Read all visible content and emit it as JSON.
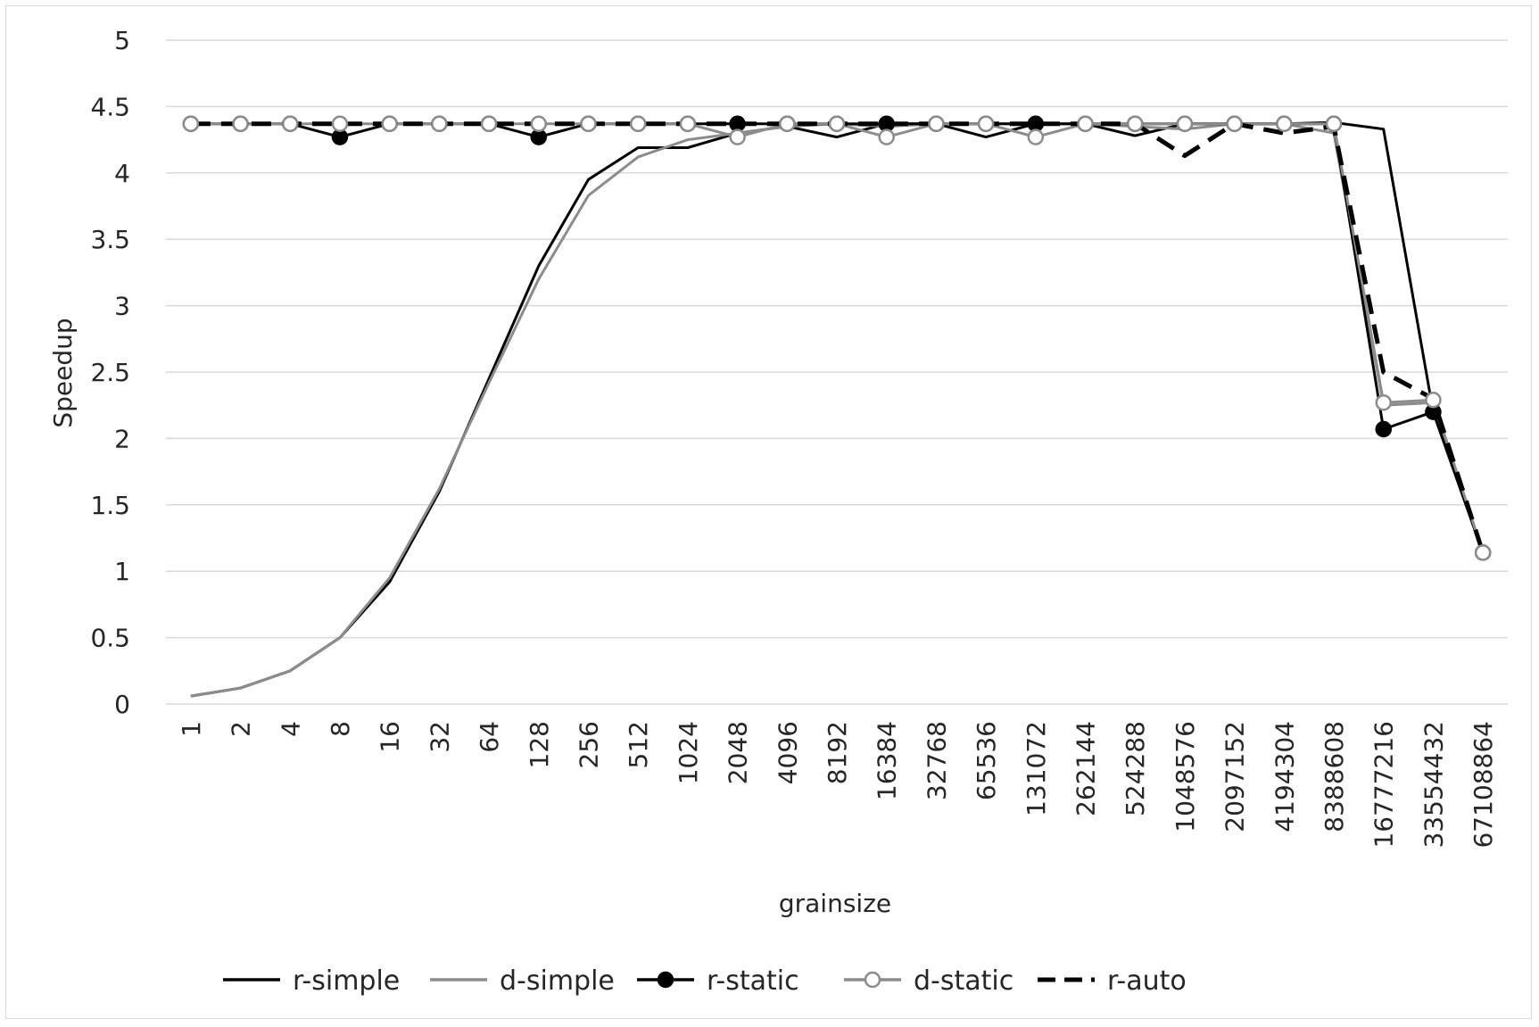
{
  "chart_data": {
    "type": "line",
    "xlabel": "grainsize",
    "ylabel": "Speedup",
    "ylim": [
      0,
      5
    ],
    "y_ticks": [
      "0",
      "0.5",
      "1",
      "1.5",
      "2",
      "2.5",
      "3",
      "3.5",
      "4",
      "4.5",
      "5"
    ],
    "grid": "horizontal",
    "legend_position": "bottom",
    "categories": [
      "1",
      "2",
      "4",
      "8",
      "16",
      "32",
      "64",
      "128",
      "256",
      "512",
      "1024",
      "2048",
      "4096",
      "8192",
      "16384",
      "32768",
      "65536",
      "131072",
      "262144",
      "524288",
      "1048576",
      "2097152",
      "4194304",
      "8388608",
      "16777216",
      "33554432",
      "67108864"
    ],
    "series": [
      {
        "name": "r-simple",
        "color": "#000000",
        "style": "solid",
        "marker": "none",
        "values": [
          0.06,
          0.12,
          0.25,
          0.5,
          0.92,
          1.6,
          2.45,
          3.3,
          3.95,
          4.19,
          4.19,
          4.3,
          4.35,
          4.27,
          4.37,
          4.37,
          4.27,
          4.37,
          4.37,
          4.28,
          4.37,
          4.37,
          4.37,
          4.38,
          4.33,
          2.2,
          1.14
        ]
      },
      {
        "name": "d-simple",
        "color": "#8c8c8c",
        "style": "solid",
        "marker": "none",
        "values": [
          0.06,
          0.12,
          0.25,
          0.5,
          0.95,
          1.62,
          2.42,
          3.2,
          3.83,
          4.12,
          4.25,
          4.3,
          4.35,
          4.37,
          4.35,
          4.37,
          4.37,
          4.37,
          4.37,
          4.35,
          4.33,
          4.37,
          4.37,
          4.3,
          2.25,
          2.27,
          1.14
        ]
      },
      {
        "name": "r-static",
        "color": "#000000",
        "style": "solid",
        "marker": "filled",
        "values": [
          4.37,
          4.37,
          4.37,
          4.27,
          4.37,
          4.37,
          4.37,
          4.27,
          4.37,
          4.37,
          4.37,
          4.37,
          4.37,
          4.37,
          4.37,
          4.37,
          4.37,
          4.37,
          4.37,
          4.37,
          4.37,
          4.37,
          4.37,
          4.37,
          2.07,
          2.2,
          1.14
        ]
      },
      {
        "name": "d-static",
        "color": "#8c8c8c",
        "style": "solid",
        "marker": "open",
        "values": [
          4.37,
          4.37,
          4.37,
          4.37,
          4.37,
          4.37,
          4.37,
          4.37,
          4.37,
          4.37,
          4.37,
          4.27,
          4.37,
          4.37,
          4.27,
          4.37,
          4.37,
          4.27,
          4.37,
          4.37,
          4.37,
          4.37,
          4.37,
          4.37,
          2.27,
          2.29,
          1.14
        ]
      },
      {
        "name": "r-auto",
        "color": "#000000",
        "style": "dashed",
        "marker": "none",
        "values": [
          4.37,
          4.37,
          4.37,
          4.37,
          4.37,
          4.37,
          4.37,
          4.37,
          4.37,
          4.37,
          4.37,
          4.37,
          4.37,
          4.37,
          4.37,
          4.37,
          4.37,
          4.37,
          4.37,
          4.37,
          4.13,
          4.37,
          4.3,
          4.35,
          2.5,
          2.3,
          1.14
        ]
      }
    ]
  }
}
